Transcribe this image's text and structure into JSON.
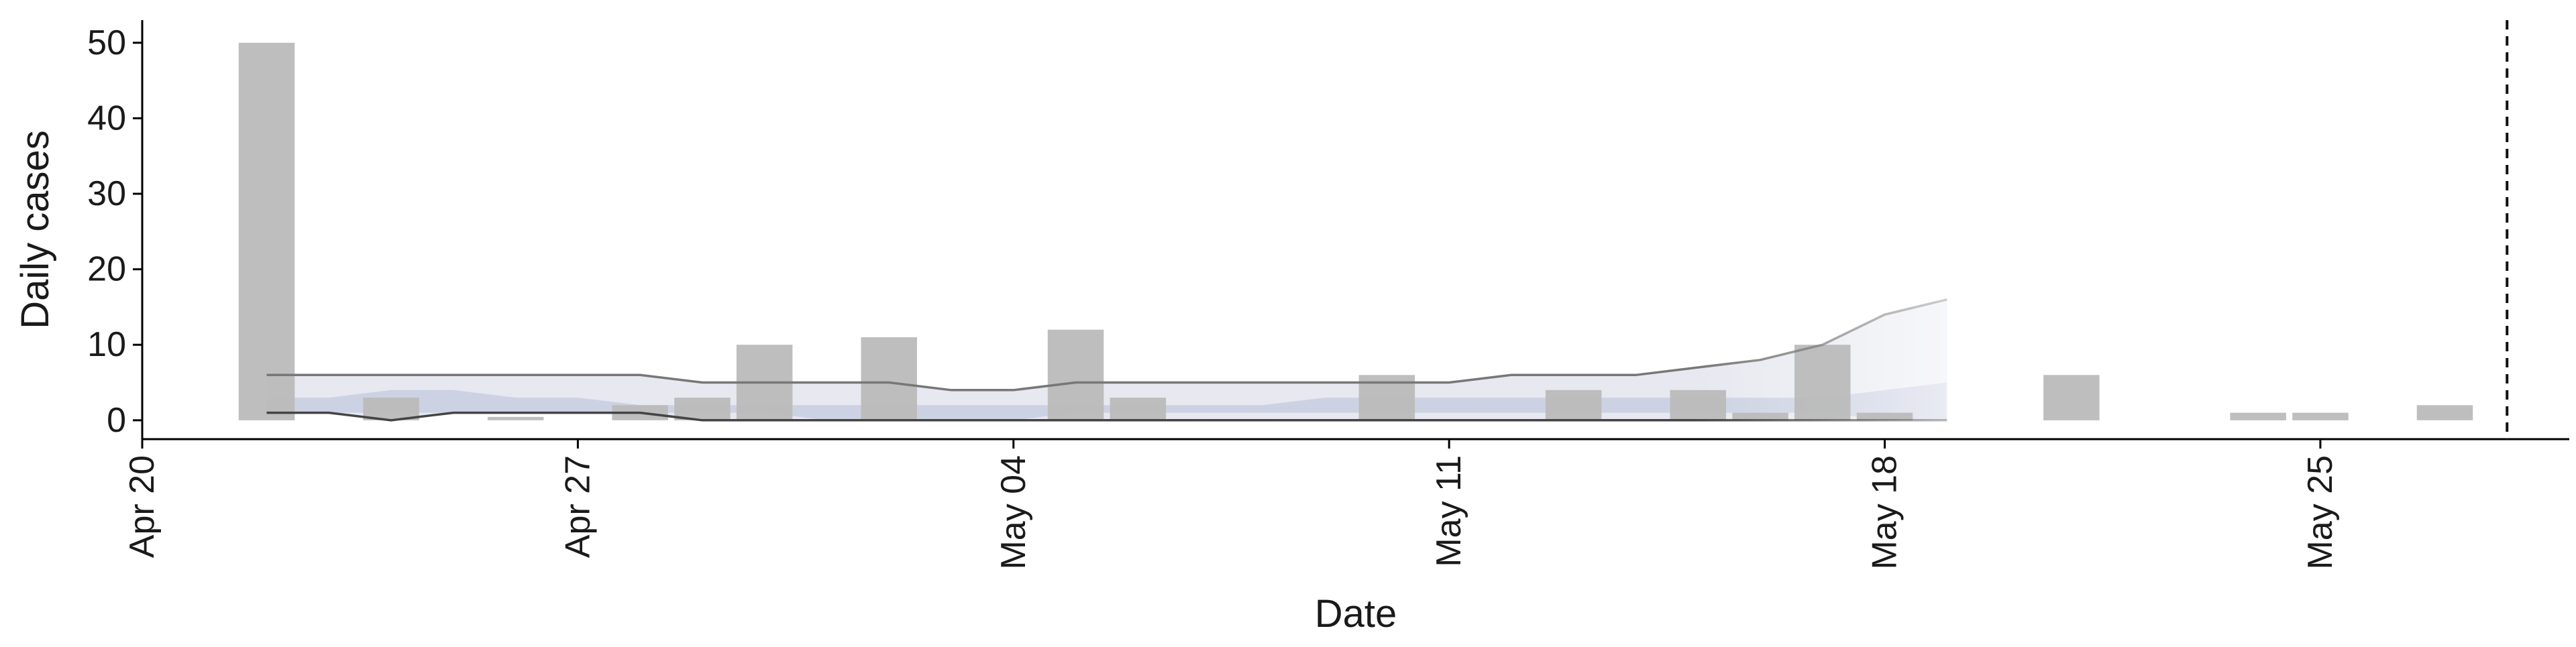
{
  "chart_data": {
    "type": "bar",
    "title": "",
    "xlabel": "Date",
    "ylabel": "Daily cases",
    "x_ticks": [
      "Apr 20",
      "Apr 27",
      "May 04",
      "May 11",
      "May 18",
      "May 25"
    ],
    "x_tick_dates": [
      "2020-04-20",
      "2020-04-27",
      "2020-05-04",
      "2020-05-11",
      "2020-05-18",
      "2020-05-25"
    ],
    "xlim": [
      "2020-04-20",
      "2020-05-29"
    ],
    "y_ticks": [
      0,
      10,
      20,
      30,
      40,
      50
    ],
    "ylim": [
      -2.5,
      53
    ],
    "grid": false,
    "legend": "none",
    "colors": {
      "bars": "#bbbbbb",
      "band_outer": "#e4e6ee",
      "band_inner": "#c6cde0",
      "line_upper": "#777777",
      "line_lower": "#444444",
      "vline": "#111111"
    },
    "bars": {
      "dates": [
        "2020-04-22",
        "2020-04-24",
        "2020-04-26",
        "2020-04-28",
        "2020-04-29",
        "2020-04-30",
        "2020-05-02",
        "2020-05-05",
        "2020-05-06",
        "2020-05-10",
        "2020-05-13",
        "2020-05-15",
        "2020-05-16",
        "2020-05-17",
        "2020-05-18",
        "2020-05-21",
        "2020-05-24",
        "2020-05-25",
        "2020-05-27"
      ],
      "values": [
        50,
        3,
        0,
        2,
        3,
        10,
        11,
        12,
        3,
        6,
        4,
        4,
        1,
        10,
        1,
        6,
        1,
        1,
        2
      ]
    },
    "band": {
      "dates": [
        "2020-04-22",
        "2020-04-23",
        "2020-04-24",
        "2020-04-25",
        "2020-04-26",
        "2020-04-27",
        "2020-04-28",
        "2020-04-29",
        "2020-04-30",
        "2020-05-01",
        "2020-05-02",
        "2020-05-03",
        "2020-05-04",
        "2020-05-05",
        "2020-05-06",
        "2020-05-07",
        "2020-05-08",
        "2020-05-09",
        "2020-05-10",
        "2020-05-11",
        "2020-05-12",
        "2020-05-13",
        "2020-05-14",
        "2020-05-15",
        "2020-05-16",
        "2020-05-17",
        "2020-05-18",
        "2020-05-19"
      ],
      "upper": [
        6,
        6,
        6,
        6,
        6,
        6,
        6,
        5,
        5,
        5,
        5,
        4,
        4,
        5,
        5,
        5,
        5,
        5,
        5,
        5,
        6,
        6,
        6,
        7,
        8,
        10,
        14,
        16
      ],
      "lower": [
        1,
        1,
        0,
        1,
        1,
        1,
        1,
        0,
        0,
        0,
        0,
        0,
        0,
        0,
        0,
        0,
        0,
        0,
        0,
        0,
        0,
        0,
        0,
        0,
        0,
        0,
        0,
        0
      ],
      "inner_upper": [
        3,
        3,
        4,
        4,
        3,
        3,
        2,
        2,
        2,
        2,
        2,
        2,
        2,
        2,
        2,
        2,
        2,
        3,
        3,
        3,
        3,
        3,
        3,
        3,
        3,
        3,
        4,
        5
      ],
      "inner_lower": [
        1,
        1,
        1,
        1,
        1,
        1,
        1,
        1,
        1,
        0,
        0,
        0,
        0,
        1,
        1,
        1,
        1,
        1,
        1,
        1,
        1,
        1,
        1,
        1,
        1,
        1,
        0,
        0
      ]
    },
    "forecast_start": "2020-05-16",
    "vline_date": "2020-05-28"
  }
}
